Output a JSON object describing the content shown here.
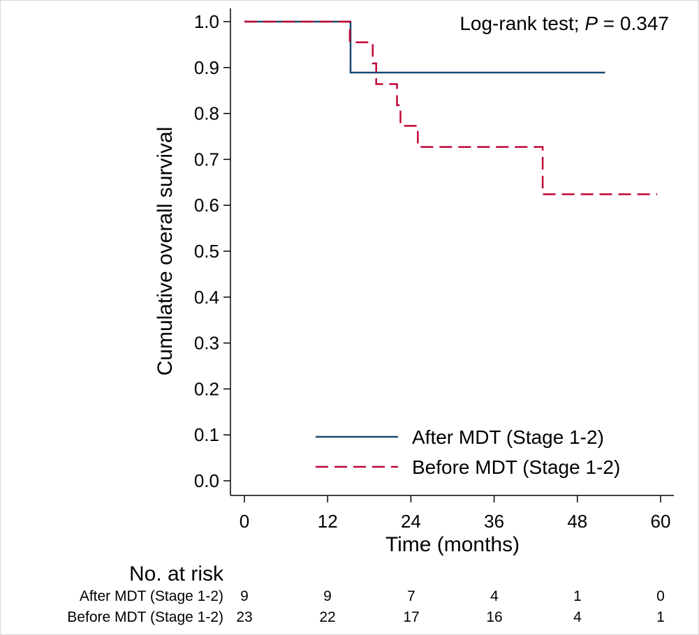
{
  "chart_data": {
    "type": "line",
    "subtype": "kaplan-meier",
    "ylabel": "Cumulative overall survival",
    "xlabel": "Time (months)",
    "xlim": [
      0,
      60
    ],
    "ylim": [
      0,
      1
    ],
    "xticks": [
      "0",
      "12",
      "24",
      "36",
      "48",
      "60"
    ],
    "yticks": [
      "0.0",
      "0.1",
      "0.2",
      "0.3",
      "0.4",
      "0.5",
      "0.6",
      "0.7",
      "0.8",
      "0.9",
      "1.0"
    ],
    "annotation": {
      "prefix": "Log-rank test; ",
      "italic": "P",
      "suffix": " = 0.347"
    },
    "grid": false,
    "legend_position": "bottom-right",
    "series": [
      {
        "name": "After MDT (Stage 1-2)",
        "color": "#1a476f",
        "style": "solid",
        "x": [
          0,
          15.3,
          52
        ],
        "y": [
          1.0,
          0.889,
          0.889
        ]
      },
      {
        "name": "Before MDT (Stage 1-2)",
        "color": "#c10534",
        "style": "dashed",
        "x": [
          0,
          15.2,
          18.5,
          19.0,
          22.0,
          22.5,
          25.0,
          43.0,
          59.5
        ],
        "y": [
          1.0,
          0.955,
          0.909,
          0.864,
          0.818,
          0.773,
          0.727,
          0.624,
          0.624
        ]
      }
    ],
    "risk_table": {
      "title": "No. at risk",
      "times": [
        0,
        12,
        24,
        36,
        48,
        60
      ],
      "rows": [
        {
          "label": "After MDT (Stage 1-2)",
          "values": [
            "9",
            "9",
            "7",
            "4",
            "1",
            "0"
          ]
        },
        {
          "label": "Before MDT (Stage 1-2)",
          "values": [
            "23",
            "22",
            "17",
            "16",
            "4",
            "1"
          ]
        }
      ]
    }
  }
}
